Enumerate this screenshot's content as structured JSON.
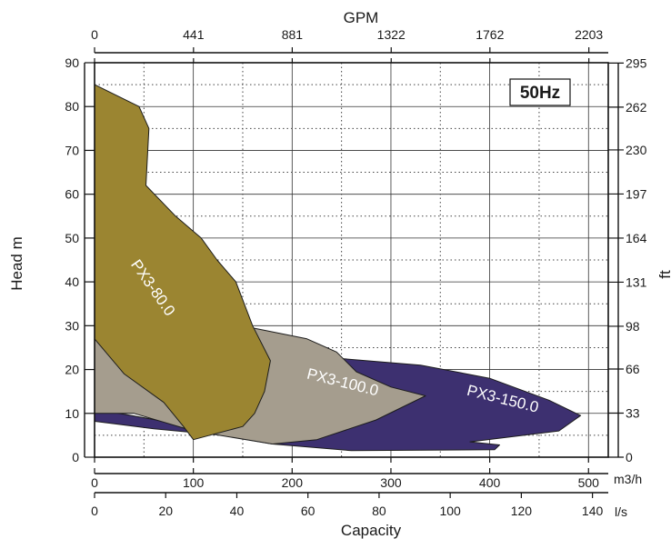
{
  "chart_data": {
    "type": "area",
    "title": "",
    "badge": "50Hz",
    "xlabel": "Capacity",
    "ylabel": "Head m",
    "y2label": "ft",
    "x2label": "GPM",
    "xunit_m3h": "m3/h",
    "xunit_ls": "l/s",
    "xlim_m3h": [
      0,
      520
    ],
    "ylim": [
      0,
      90
    ],
    "grid": true,
    "axes": {
      "bottom_m3h": {
        "ticks": [
          0,
          100,
          200,
          300,
          400,
          500
        ],
        "labels": [
          "0",
          "100",
          "200",
          "300",
          "400",
          "500"
        ]
      },
      "bottom_ls": {
        "ticks": [
          0,
          20,
          40,
          60,
          80,
          100,
          120,
          140
        ],
        "labels": [
          "0",
          "20",
          "40",
          "60",
          "80",
          "100",
          "120",
          "140"
        ]
      },
      "top_gpm": {
        "ticks": [
          0,
          441,
          881,
          1322,
          1762,
          2203
        ],
        "labels": [
          "0",
          "441",
          "881",
          "1322",
          "1762",
          "2203"
        ]
      },
      "left_m": {
        "ticks": [
          0,
          10,
          20,
          30,
          40,
          50,
          60,
          70,
          80,
          90
        ],
        "labels": [
          "0",
          "10",
          "20",
          "30",
          "40",
          "50",
          "60",
          "70",
          "80",
          "90"
        ]
      },
      "right_ft": {
        "ticks": [
          0,
          33,
          66,
          98,
          131,
          164,
          197,
          230,
          262,
          295
        ],
        "labels": [
          "0",
          "33",
          "66",
          "98",
          "131",
          "164",
          "197",
          "230",
          "262",
          "295"
        ]
      }
    },
    "regions": [
      {
        "name": "PX3-150.0",
        "color": "#3d3070",
        "text_color": "#ffffff",
        "label_at": [
          412,
          12.2
        ],
        "label_rotation": 14,
        "polygon": [
          [
            0,
            11
          ],
          [
            100,
            7
          ],
          [
            195,
            16.5
          ],
          [
            250,
            22.5
          ],
          [
            330,
            21
          ],
          [
            400,
            18
          ],
          [
            460,
            13
          ],
          [
            492,
            9.5
          ],
          [
            470,
            6
          ],
          [
            380,
            3.5
          ],
          [
            410,
            2.8
          ],
          [
            405,
            1.7
          ],
          [
            260,
            1.5
          ],
          [
            180,
            3
          ],
          [
            130,
            5
          ],
          [
            60,
            6.5
          ],
          [
            0,
            8.2
          ]
        ]
      },
      {
        "name": "PX3-100.0",
        "color": "#a59d8e",
        "text_color": "#ffffff",
        "label_at": [
          250,
          16
        ],
        "label_rotation": 14,
        "polygon": [
          [
            0,
            27
          ],
          [
            100,
            28
          ],
          [
            160,
            29.5
          ],
          [
            215,
            27
          ],
          [
            245,
            24
          ],
          [
            265,
            19.5
          ],
          [
            300,
            16
          ],
          [
            335,
            14
          ],
          [
            285,
            8.5
          ],
          [
            225,
            4
          ],
          [
            180,
            3
          ],
          [
            100,
            6
          ],
          [
            40,
            10
          ],
          [
            0,
            10
          ]
        ]
      },
      {
        "name": "PX3-80.0",
        "color": "#9b8531",
        "text_color": "#ffffff",
        "label_at": [
          55,
          38
        ],
        "label_rotation": 55,
        "polygon": [
          [
            0,
            85
          ],
          [
            45,
            80
          ],
          [
            55,
            75
          ],
          [
            52,
            62
          ],
          [
            82,
            55
          ],
          [
            108,
            50
          ],
          [
            124,
            45
          ],
          [
            143,
            40
          ],
          [
            160,
            30
          ],
          [
            178,
            22
          ],
          [
            172,
            15
          ],
          [
            162,
            10
          ],
          [
            150,
            7
          ],
          [
            100,
            4
          ],
          [
            90,
            7
          ],
          [
            70,
            12.5
          ],
          [
            30,
            19
          ],
          [
            0,
            27
          ]
        ]
      }
    ]
  }
}
